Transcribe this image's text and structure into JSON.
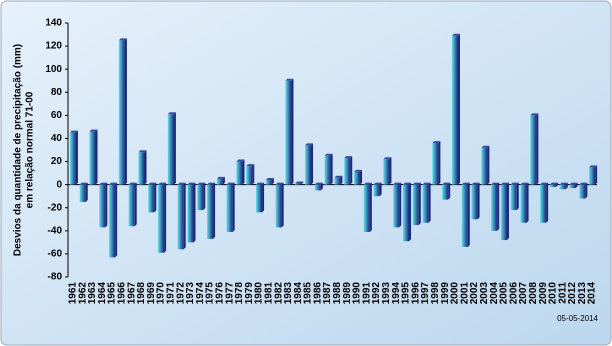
{
  "chart_data": {
    "type": "bar",
    "ylabel": [
      "Desvios da quantidade de precipitação (mm)",
      "em relação normal 71-00"
    ],
    "note": "05-05-2014",
    "categories": [
      "1961",
      "1962",
      "1963",
      "1964",
      "1965",
      "1966",
      "1967",
      "1968",
      "1969",
      "1970",
      "1971",
      "1972",
      "1973",
      "1974",
      "1975",
      "1976",
      "1977",
      "1978",
      "1979",
      "1980",
      "1981",
      "1982",
      "1983",
      "1984",
      "1985",
      "1986",
      "1987",
      "1988",
      "1989",
      "1990",
      "1991",
      "1992",
      "1993",
      "1994",
      "1995",
      "1996",
      "1997",
      "1998",
      "1999",
      "2000",
      "2001",
      "2002",
      "2003",
      "2004",
      "2005",
      "2006",
      "2007",
      "2008",
      "2009",
      "2010",
      "2011",
      "2012",
      "2013",
      "2014"
    ],
    "values": [
      45,
      -15,
      46,
      -37,
      -63,
      125,
      -36,
      28,
      -24,
      -59,
      61,
      -56,
      -50,
      -22,
      -47,
      5,
      -41,
      20,
      16,
      -24,
      4,
      -37,
      90,
      1,
      34,
      -5,
      25,
      6,
      23,
      11,
      -41,
      -10,
      22,
      -37,
      -49,
      -35,
      -33,
      36,
      -13,
      129,
      -54,
      -30,
      32,
      -40,
      -48,
      -22,
      -33,
      60,
      -33,
      -2,
      -4,
      -3,
      -12,
      15
    ],
    "color": "#1a2a7a",
    "ylim": [
      -80,
      140
    ],
    "yticks": [
      -80,
      -60,
      -40,
      -20,
      0,
      20,
      40,
      60,
      80,
      100,
      120,
      140
    ],
    "grid": false
  }
}
